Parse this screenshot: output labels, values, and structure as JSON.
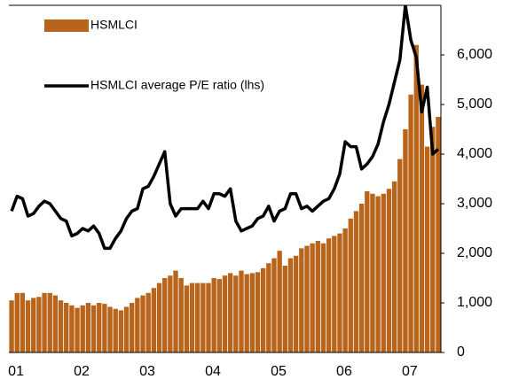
{
  "chart_data": {
    "type": "bar-line",
    "categories": [
      "01",
      null,
      null,
      null,
      null,
      null,
      null,
      null,
      null,
      null,
      null,
      null,
      "02",
      null,
      null,
      null,
      null,
      null,
      null,
      null,
      null,
      null,
      null,
      null,
      "03",
      null,
      null,
      null,
      null,
      null,
      null,
      null,
      null,
      null,
      null,
      null,
      "04",
      null,
      null,
      null,
      null,
      null,
      null,
      null,
      null,
      null,
      null,
      null,
      "05",
      null,
      null,
      null,
      null,
      null,
      null,
      null,
      null,
      null,
      null,
      null,
      "06",
      null,
      null,
      null,
      null,
      null,
      null,
      null,
      null,
      null,
      null,
      null,
      "07",
      null,
      null,
      null,
      null,
      null,
      null
    ],
    "series": [
      {
        "name": "HSMLCI",
        "type": "bar",
        "color": "#b8651b",
        "values": [
          1050,
          1200,
          1200,
          1050,
          1100,
          1120,
          1200,
          1200,
          1150,
          1050,
          1000,
          950,
          900,
          950,
          1000,
          950,
          1000,
          980,
          920,
          880,
          850,
          920,
          1000,
          1100,
          1150,
          1200,
          1300,
          1400,
          1500,
          1550,
          1650,
          1500,
          1350,
          1400,
          1400,
          1400,
          1400,
          1500,
          1480,
          1550,
          1600,
          1550,
          1650,
          1580,
          1600,
          1620,
          1700,
          1800,
          1900,
          2050,
          1750,
          1900,
          1950,
          2100,
          2150,
          2200,
          2250,
          2200,
          2300,
          2350,
          2400,
          2500,
          2700,
          2850,
          3000,
          3250,
          3200,
          3150,
          3200,
          3300,
          3450,
          3900,
          4500,
          5200,
          6200,
          5400,
          4150,
          4550,
          4750
        ]
      },
      {
        "name": "HSMLCI average P/E ratio (lhs)",
        "type": "line",
        "color": "#000000",
        "values": [
          2850,
          3150,
          3100,
          2750,
          2800,
          2950,
          3050,
          3000,
          2850,
          2700,
          2650,
          2350,
          2400,
          2500,
          2450,
          2550,
          2400,
          2100,
          2100,
          2300,
          2450,
          2700,
          2850,
          2900,
          3300,
          3350,
          3550,
          3800,
          4050,
          3000,
          2750,
          2900,
          2900,
          2900,
          2900,
          3050,
          2900,
          3200,
          3200,
          3150,
          3300,
          2650,
          2450,
          2500,
          2550,
          2700,
          2750,
          2950,
          2650,
          2850,
          2900,
          3200,
          3200,
          2900,
          2950,
          2850,
          2950,
          3050,
          3100,
          3300,
          3600,
          4250,
          4150,
          4150,
          3700,
          3800,
          3950,
          4200,
          4650,
          5000,
          5450,
          5900,
          7000,
          6300,
          5950,
          4850,
          5350,
          4000,
          4100
        ]
      }
    ],
    "ylim": [
      0,
      7000
    ],
    "yticks": [
      0,
      {
        "value": 1000,
        "label": "1,000"
      },
      {
        "value": 2000,
        "label": "2,000"
      },
      {
        "value": 3000,
        "label": "3,000"
      },
      {
        "value": 4000,
        "label": "4,000"
      },
      {
        "value": 5000,
        "label": "5,000"
      },
      {
        "value": 6000,
        "label": "6,000"
      }
    ],
    "legend": "upper-left",
    "grid": false
  }
}
